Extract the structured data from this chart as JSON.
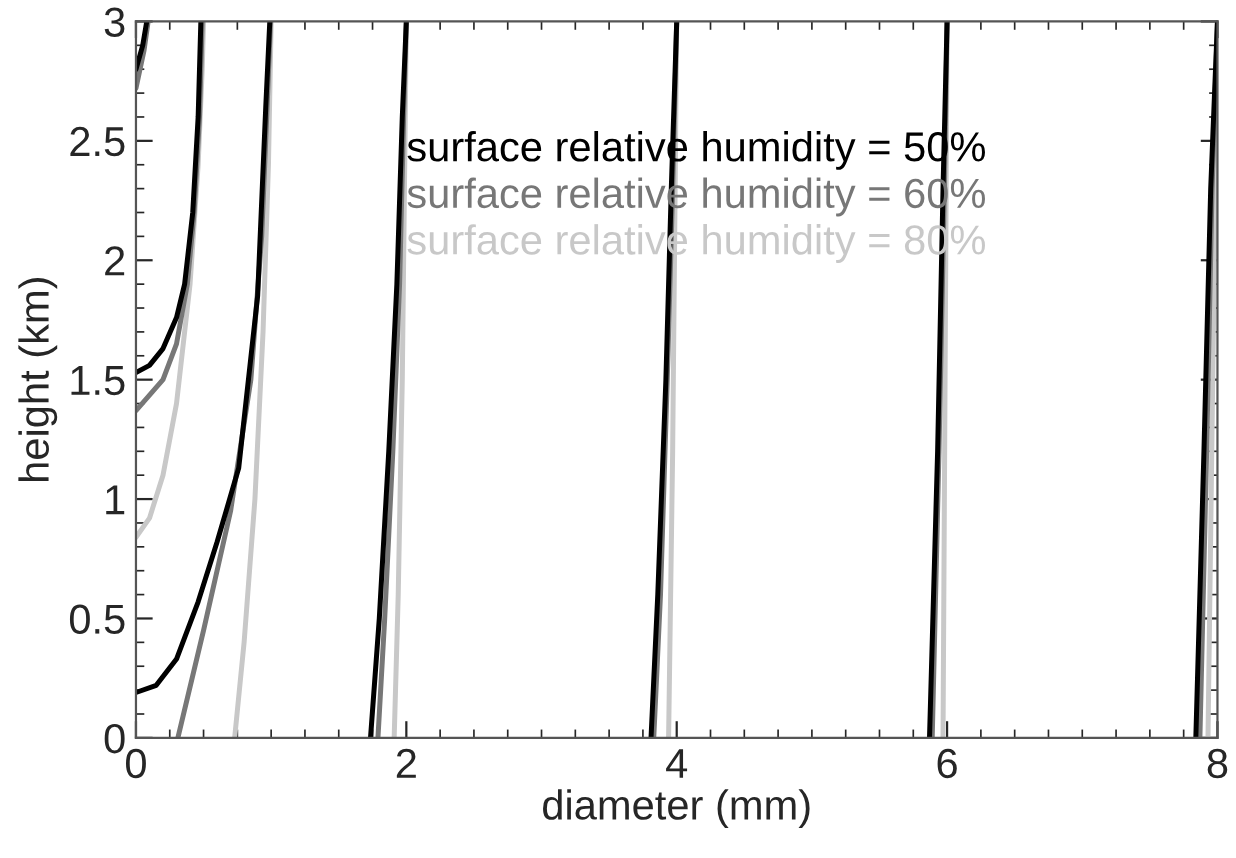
{
  "chart_data": {
    "type": "line",
    "xlabel": "diameter (mm)",
    "ylabel": "height (km)",
    "xlim": [
      0,
      8
    ],
    "ylim": [
      0,
      3
    ],
    "xticks": [
      0,
      2,
      4,
      6,
      8
    ],
    "yticks": [
      0,
      0.5,
      1,
      1.5,
      2,
      2.5,
      3
    ],
    "grid": false,
    "legend": "top",
    "series": [
      {
        "name": "surface relative humidity = 50%",
        "color": "#000000",
        "x": [
          0,
          0.1,
          0.2,
          0.3,
          0.36,
          0.42,
          0.46,
          0.48
        ],
        "values": [
          1.53,
          1.56,
          1.63,
          1.76,
          1.9,
          2.2,
          2.6,
          3
        ]
      },
      {
        "name": "surface relative humidity = 60%",
        "color": "#777777",
        "x": [
          0,
          0.2,
          0.3,
          0.38,
          0.43,
          0.47,
          0.49
        ],
        "values": [
          1.37,
          1.5,
          1.65,
          1.9,
          2.2,
          2.6,
          3
        ]
      },
      {
        "name": "surface relative humidity = 80%",
        "color": "#c8c8c8",
        "x": [
          0,
          0.1,
          0.2,
          0.3,
          0.4,
          0.46,
          0.49,
          0.5
        ],
        "values": [
          0.84,
          0.92,
          1.1,
          1.4,
          1.9,
          2.4,
          2.8,
          3
        ]
      },
      {
        "color": "#000000",
        "x": [
          0,
          0.05,
          0.08
        ],
        "values": [
          2.8,
          2.9,
          3
        ]
      },
      {
        "color": "#777777",
        "x": [
          0,
          0.06,
          0.09
        ],
        "values": [
          2.72,
          2.88,
          3
        ]
      },
      {
        "color": "#000000",
        "x": [
          0,
          0.15,
          0.3,
          0.46,
          0.6,
          0.76,
          0.9,
          0.96,
          0.99
        ],
        "values": [
          0.19,
          0.22,
          0.33,
          0.57,
          0.82,
          1.13,
          1.85,
          2.64,
          3
        ]
      },
      {
        "color": "#777777",
        "x": [
          0.31,
          0.5,
          0.7,
          0.85,
          0.93,
          0.97,
          0.995
        ],
        "values": [
          0,
          0.45,
          0.95,
          1.5,
          2.1,
          2.64,
          3
        ]
      },
      {
        "color": "#c8c8c8",
        "x": [
          0.73,
          0.8,
          0.88,
          0.94,
          0.98,
          1.0
        ],
        "values": [
          0,
          0.4,
          1.0,
          1.7,
          2.4,
          3
        ]
      },
      {
        "color": "#000000",
        "x": [
          1.735,
          1.8,
          1.87,
          1.93,
          1.97,
          2.0
        ],
        "values": [
          0,
          0.5,
          1.2,
          1.9,
          2.6,
          3
        ]
      },
      {
        "color": "#777777",
        "x": [
          1.79,
          1.84,
          1.9,
          1.95,
          1.98,
          2.0
        ],
        "values": [
          0,
          0.5,
          1.2,
          1.9,
          2.6,
          3
        ]
      },
      {
        "color": "#c8c8c8",
        "x": [
          1.91,
          1.94,
          1.97,
          2.0
        ],
        "values": [
          0,
          0.6,
          1.5,
          3
        ]
      },
      {
        "color": "#000000",
        "x": [
          3.81,
          3.86,
          3.92,
          3.96,
          4.0
        ],
        "values": [
          0,
          0.6,
          1.5,
          2.3,
          3
        ]
      },
      {
        "color": "#777777",
        "x": [
          3.83,
          3.88,
          3.93,
          3.97,
          4.0
        ],
        "values": [
          0,
          0.6,
          1.5,
          2.3,
          3
        ]
      },
      {
        "color": "#c8c8c8",
        "x": [
          3.94,
          3.97,
          4.0
        ],
        "values": [
          0,
          1.2,
          3
        ]
      },
      {
        "color": "#000000",
        "x": [
          5.87,
          5.93,
          5.97,
          6.0
        ],
        "values": [
          0,
          1.2,
          2.3,
          3
        ]
      },
      {
        "color": "#777777",
        "x": [
          5.89,
          5.94,
          5.98,
          6.0
        ],
        "values": [
          0,
          1.2,
          2.3,
          3
        ]
      },
      {
        "color": "#c8c8c8",
        "x": [
          5.97,
          6.0
        ],
        "values": [
          0,
          3
        ]
      },
      {
        "color": "#000000",
        "x": [
          7.84,
          7.9,
          7.95,
          8.0
        ],
        "values": [
          0,
          1.2,
          2.3,
          3
        ]
      },
      {
        "color": "#777777",
        "x": [
          7.87,
          7.92,
          7.96,
          8.0
        ],
        "values": [
          0,
          1.2,
          2.3,
          3
        ]
      },
      {
        "color": "#c8c8c8",
        "x": [
          7.93,
          8.0
        ],
        "values": [
          0,
          3
        ]
      }
    ]
  }
}
